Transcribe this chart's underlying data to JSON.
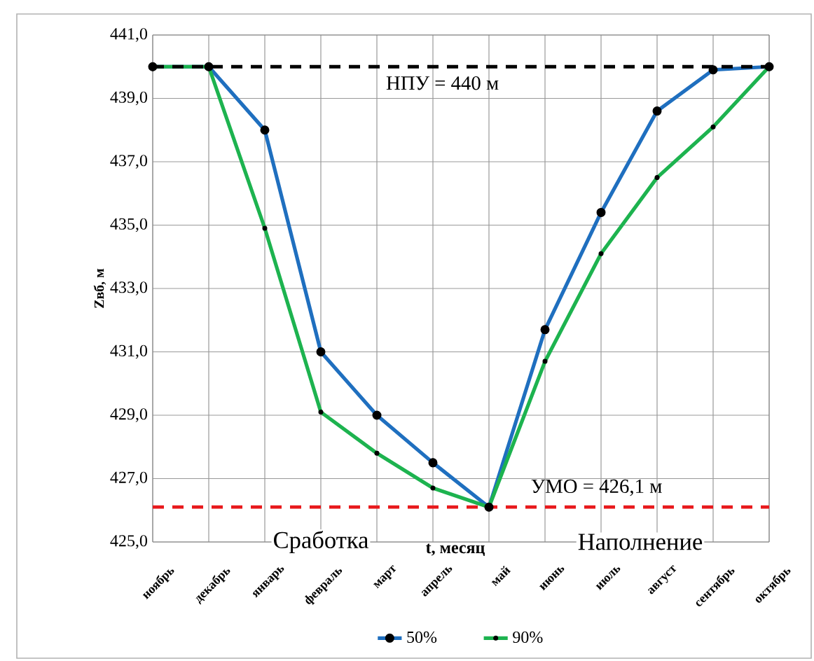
{
  "chart_data": {
    "type": "line",
    "xlabel": "t, месяц",
    "ylabel": "Zвб, м",
    "categories": [
      "ноябрь",
      "декабрь",
      "январь",
      "февраль",
      "март",
      "апрель",
      "май",
      "июнь",
      "июль",
      "август",
      "сентябрь",
      "октябрь"
    ],
    "series": [
      {
        "name": "50%",
        "color": "#1f6fbf",
        "marker": "circle",
        "values": [
          440,
          440,
          438.0,
          431.0,
          429.0,
          427.5,
          426.1,
          431.7,
          435.4,
          438.6,
          439.9,
          440
        ]
      },
      {
        "name": "90%",
        "color": "#1db34f",
        "marker": "circle",
        "values": [
          440,
          440,
          434.9,
          429.1,
          427.8,
          426.7,
          426.1,
          430.7,
          434.1,
          436.5,
          438.1,
          440
        ]
      }
    ],
    "ylim": [
      425,
      441
    ],
    "yticks": [
      {
        "value": 425,
        "label": "425,0"
      },
      {
        "value": 427,
        "label": "427,0"
      },
      {
        "value": 429,
        "label": "429,0"
      },
      {
        "value": 431,
        "label": "431,0"
      },
      {
        "value": 433,
        "label": "433,0"
      },
      {
        "value": 435,
        "label": "435,0"
      },
      {
        "value": 437,
        "label": "437,0"
      },
      {
        "value": 439,
        "label": "439,0"
      },
      {
        "value": 441,
        "label": "441,0"
      }
    ],
    "ref_lines": [
      {
        "axis": "y",
        "value": 440,
        "label": "НПУ = 440 м",
        "color": "#000000",
        "line_style": "dashed"
      },
      {
        "axis": "y",
        "value": 426.1,
        "label": "УМО = 426,1 м",
        "color": "#e8191c",
        "line_style": "dashed"
      }
    ],
    "annotations": [
      "Сработка",
      "Наполнение"
    ],
    "grid": true,
    "legend": "bottom"
  }
}
